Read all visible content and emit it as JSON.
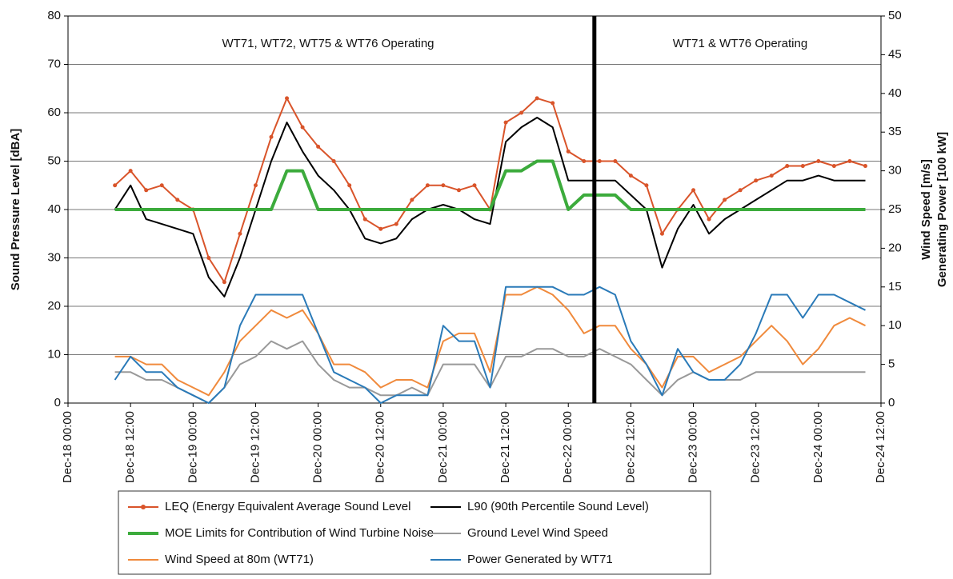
{
  "chart_data": {
    "type": "line",
    "annotations": [
      "WT71, WT72, WT75 & WT76 Operating",
      "WT71 & WT76 Operating"
    ],
    "divider_x": "Dec-22 05:00",
    "ylabel": "Sound Pressure Level [dBA]",
    "y2label": [
      "Wind Speed [m/s]",
      "Generating Power [100 kW]"
    ],
    "xlim": [
      "Dec-18 00:00",
      "Dec-24 12:00"
    ],
    "xticks": [
      "Dec-18 00:00",
      "Dec-18 12:00",
      "Dec-19 00:00",
      "Dec-19 12:00",
      "Dec-20 00:00",
      "Dec-20 12:00",
      "Dec-21 00:00",
      "Dec-21 12:00",
      "Dec-22 00:00",
      "Dec-22 12:00",
      "Dec-23 00:00",
      "Dec-23 12:00",
      "Dec-24 00:00",
      "Dec-24 12:00"
    ],
    "ylim": [
      0,
      80
    ],
    "yticks": [
      0,
      10,
      20,
      30,
      40,
      50,
      60,
      70,
      80
    ],
    "y2lim": [
      0,
      50
    ],
    "y2ticks": [
      0,
      5,
      10,
      15,
      20,
      25,
      30,
      35,
      40,
      45,
      50
    ],
    "grid": true,
    "x": [
      "Dec-18 09:00",
      "Dec-18 12:00",
      "Dec-18 15:00",
      "Dec-18 18:00",
      "Dec-18 21:00",
      "Dec-19 00:00",
      "Dec-19 03:00",
      "Dec-19 06:00",
      "Dec-19 09:00",
      "Dec-19 12:00",
      "Dec-19 15:00",
      "Dec-19 18:00",
      "Dec-19 21:00",
      "Dec-20 00:00",
      "Dec-20 03:00",
      "Dec-20 06:00",
      "Dec-20 09:00",
      "Dec-20 12:00",
      "Dec-20 15:00",
      "Dec-20 18:00",
      "Dec-20 21:00",
      "Dec-21 00:00",
      "Dec-21 03:00",
      "Dec-21 06:00",
      "Dec-21 09:00",
      "Dec-21 12:00",
      "Dec-21 15:00",
      "Dec-21 18:00",
      "Dec-21 21:00",
      "Dec-22 00:00",
      "Dec-22 03:00",
      "Dec-22 06:00",
      "Dec-22 09:00",
      "Dec-22 12:00",
      "Dec-22 15:00",
      "Dec-22 18:00",
      "Dec-22 21:00",
      "Dec-23 00:00",
      "Dec-23 03:00",
      "Dec-23 06:00",
      "Dec-23 09:00",
      "Dec-23 12:00",
      "Dec-23 15:00",
      "Dec-23 18:00",
      "Dec-23 21:00",
      "Dec-24 00:00",
      "Dec-24 03:00",
      "Dec-24 06:00",
      "Dec-24 09:00"
    ],
    "series": [
      {
        "name": "LEQ (Energy Equivalent Average Sound Level",
        "color": "#d9542a",
        "markers": true,
        "width": 2,
        "values": [
          45,
          48,
          44,
          45,
          42,
          40,
          30,
          25,
          35,
          45,
          55,
          63,
          57,
          53,
          50,
          45,
          38,
          36,
          37,
          42,
          45,
          45,
          44,
          45,
          40,
          58,
          60,
          63,
          62,
          52,
          50,
          50,
          50,
          47,
          45,
          35,
          40,
          44,
          38,
          42,
          44,
          46,
          47,
          49,
          49,
          50,
          49,
          50,
          49
        ]
      },
      {
        "name": "L90 (90th Percentile Sound Level)",
        "color": "#000000",
        "width": 2,
        "values": [
          40,
          45,
          38,
          37,
          36,
          35,
          26,
          22,
          30,
          40,
          50,
          58,
          52,
          47,
          44,
          40,
          34,
          33,
          34,
          38,
          40,
          41,
          40,
          38,
          37,
          54,
          57,
          59,
          57,
          46,
          46,
          46,
          46,
          43,
          40,
          28,
          36,
          41,
          35,
          38,
          40,
          42,
          44,
          46,
          46,
          47,
          46,
          46,
          46
        ]
      },
      {
        "name": "MOE Limits for Contribution of Wind Turbine Noise",
        "color": "#3cab3c",
        "width": 4,
        "values": [
          40,
          40,
          40,
          40,
          40,
          40,
          40,
          40,
          40,
          40,
          40,
          48,
          48,
          40,
          40,
          40,
          40,
          40,
          40,
          40,
          40,
          40,
          40,
          40,
          40,
          48,
          48,
          50,
          50,
          40,
          43,
          43,
          43,
          40,
          40,
          40,
          40,
          40,
          40,
          40,
          40,
          40,
          40,
          40,
          40,
          40,
          40,
          40,
          40
        ]
      },
      {
        "name": "Ground Level Wind Speed",
        "color": "#999999",
        "width": 2,
        "axis": "y2",
        "values": [
          4,
          4,
          3,
          3,
          2,
          1,
          0,
          2,
          5,
          6,
          8,
          7,
          8,
          5,
          3,
          2,
          2,
          1,
          1,
          2,
          1,
          5,
          5,
          5,
          2,
          6,
          6,
          7,
          7,
          6,
          6,
          7,
          6,
          5,
          3,
          1,
          3,
          4,
          3,
          3,
          3,
          4,
          4,
          4,
          4,
          4,
          4,
          4,
          4
        ]
      },
      {
        "name": "Wind Speed at 80m (WT71)",
        "color": "#f08a3c",
        "width": 2,
        "axis": "y2",
        "values": [
          6,
          6,
          5,
          5,
          3,
          2,
          1,
          4,
          8,
          10,
          12,
          11,
          12,
          9,
          5,
          5,
          4,
          2,
          3,
          3,
          2,
          8,
          9,
          9,
          4,
          14,
          14,
          15,
          14,
          12,
          9,
          10,
          10,
          7,
          5,
          2,
          6,
          6,
          4,
          5,
          6,
          8,
          10,
          8,
          5,
          7,
          10,
          11,
          10
        ]
      },
      {
        "name": "Power Generated by WT71",
        "color": "#2a7ab8",
        "width": 2,
        "axis": "y2",
        "values": [
          3,
          6,
          4,
          4,
          2,
          1,
          0,
          2,
          10,
          14,
          14,
          14,
          14,
          9,
          4,
          3,
          2,
          0,
          1,
          1,
          1,
          10,
          8,
          8,
          2,
          15,
          15,
          15,
          15,
          14,
          14,
          15,
          14,
          8,
          5,
          1,
          7,
          4,
          3,
          3,
          5,
          9,
          14,
          14,
          11,
          14,
          14,
          13,
          12
        ]
      }
    ]
  }
}
